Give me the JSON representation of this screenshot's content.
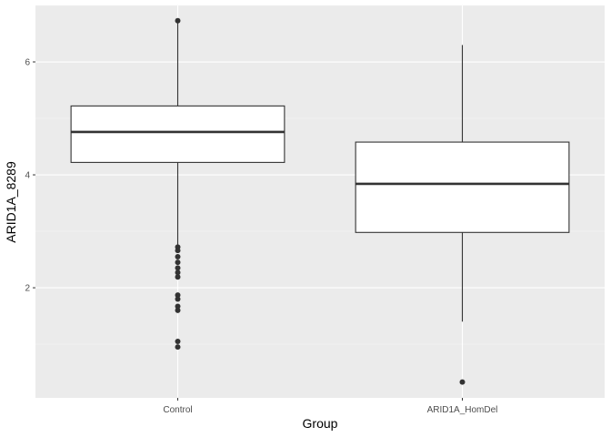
{
  "chart_data": {
    "type": "boxplot",
    "title": "",
    "xlabel": "Group",
    "ylabel": "ARID1A_8289",
    "categories": [
      "Control",
      "ARID1A_HomDel"
    ],
    "ylim": [
      0.05,
      7.0
    ],
    "yticks": [
      2,
      4,
      6
    ],
    "grid": true,
    "legend": "none",
    "colors": {
      "panel_bg": "#EBEBEB",
      "grid_major": "#FFFFFF",
      "grid_minor": "#F5F5F5",
      "box_fill": "#FFFFFF",
      "box_line": "#333333",
      "outlier": "#333333"
    },
    "boxes": [
      {
        "category": "Control",
        "whisker_low": 2.75,
        "q1": 4.22,
        "median": 4.76,
        "q3": 5.22,
        "whisker_high": 6.72,
        "outliers": [
          6.73,
          2.72,
          2.66,
          2.55,
          2.45,
          2.35,
          2.27,
          2.19,
          1.87,
          1.8,
          1.67,
          1.6,
          1.05,
          0.95
        ]
      },
      {
        "category": "ARID1A_HomDel",
        "whisker_low": 1.4,
        "q1": 2.98,
        "median": 3.84,
        "q3": 4.58,
        "whisker_high": 6.3,
        "outliers": [
          0.33
        ]
      }
    ]
  }
}
